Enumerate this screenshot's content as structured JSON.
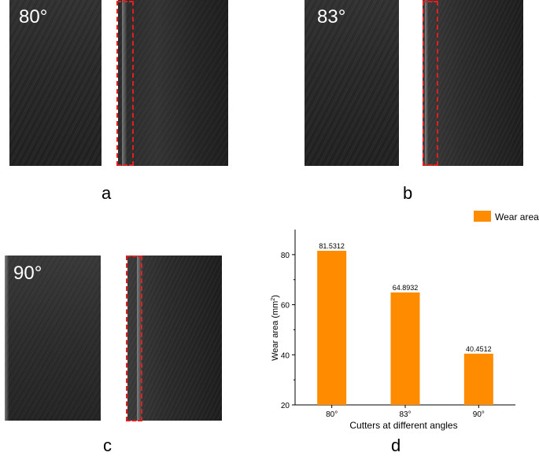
{
  "panels": {
    "a": {
      "letter": "a",
      "angle": "80°"
    },
    "b": {
      "letter": "b",
      "angle": "83°"
    },
    "c": {
      "letter": "c",
      "angle": "90°"
    },
    "d": {
      "letter": "d"
    }
  },
  "colors": {
    "bar": "#ff8c00",
    "highlight": "#e0201e"
  },
  "chart_data": {
    "type": "bar",
    "categories": [
      "80°",
      "83°",
      "90°"
    ],
    "values": [
      81.5312,
      64.8932,
      40.4512
    ],
    "value_labels": [
      "81.5312",
      "64.8932",
      "40.4512"
    ],
    "title": "",
    "xlabel": "Cutters at different angles",
    "ylabel": "Wear area (mm",
    "ylabel_sup": "2",
    "ylabel_end": ")",
    "ylim": [
      20,
      90
    ],
    "yticks": [
      "20",
      "40",
      "60",
      "80"
    ],
    "yticks_values": [
      20,
      40,
      60,
      80
    ],
    "legend": {
      "label": "Wear area",
      "placement": "top-right"
    },
    "grid": false
  }
}
